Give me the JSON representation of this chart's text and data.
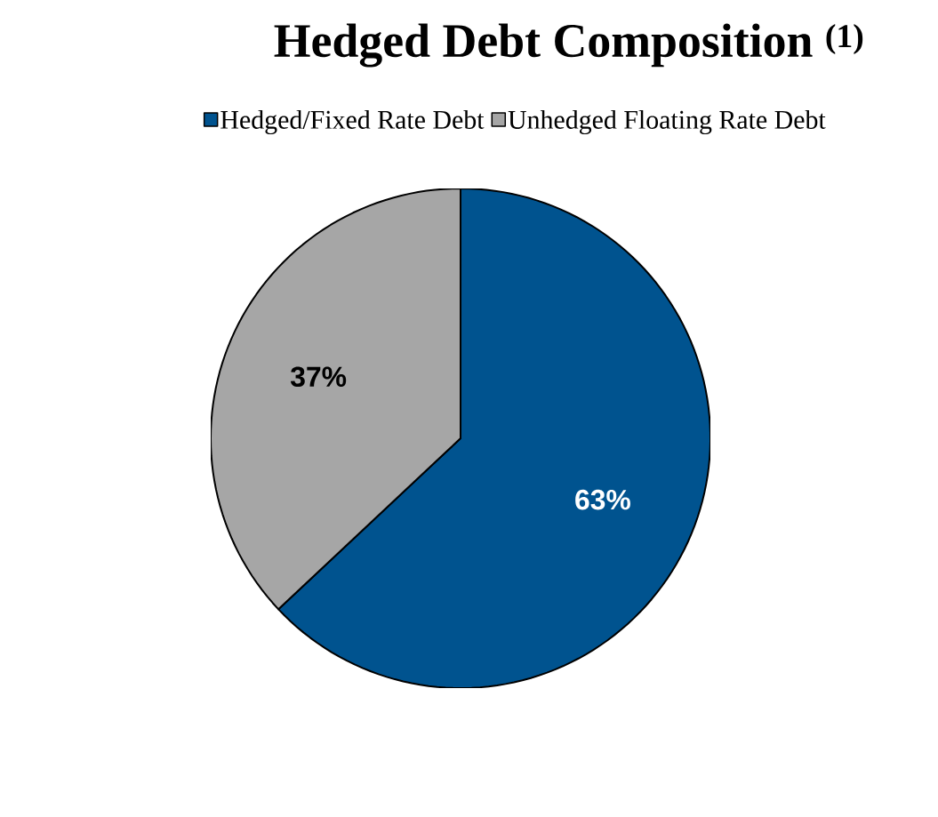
{
  "chart_data": {
    "type": "pie",
    "title": "Hedged Debt Composition $^{(1)}$",
    "categories": [
      "Hedged/Fixed Rate Debt",
      "Unhedged Floating Rate Debt"
    ],
    "values": [
      63,
      37
    ],
    "colors": [
      "#00538f",
      "#a6a6a6"
    ],
    "value_labels": [
      "63%",
      "37%"
    ],
    "legend": "top"
  }
}
